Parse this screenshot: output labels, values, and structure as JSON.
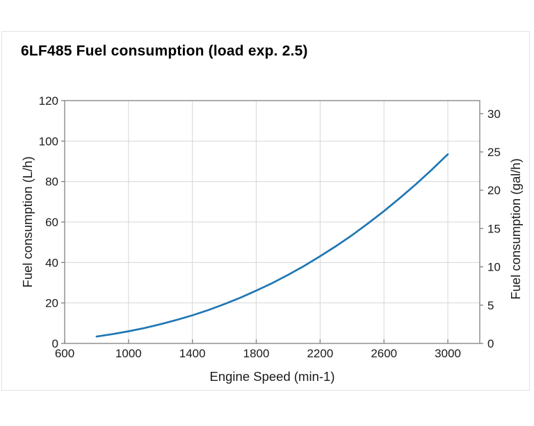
{
  "chart_data": {
    "type": "line",
    "title": "6LF485 Fuel consumption (load exp. 2.5)",
    "xlabel": "Engine Speed (min-1)",
    "ylabel_left": "Fuel consumption (L/h)",
    "ylabel_right": "Fuel consumption (gal/h)",
    "xlim": [
      600,
      3200
    ],
    "ylim_left": [
      0,
      120
    ],
    "ylim_right": [
      0,
      31.7
    ],
    "x_ticks": [
      600,
      1000,
      1400,
      1800,
      2200,
      2600,
      3000
    ],
    "y_ticks_left": [
      0,
      20,
      40,
      60,
      80,
      100,
      120
    ],
    "y_ticks_right": [
      0,
      5,
      10,
      15,
      20,
      25,
      30
    ],
    "liters_per_gallon": 3.78541,
    "grid": true,
    "legend": "none",
    "series": [
      {
        "name": "Fuel consumption",
        "color": "#1f77b4",
        "points": [
          [
            800,
            3.4
          ],
          [
            900,
            4.6
          ],
          [
            1000,
            6.0
          ],
          [
            1100,
            7.6
          ],
          [
            1200,
            9.5
          ],
          [
            1300,
            11.6
          ],
          [
            1400,
            13.9
          ],
          [
            1500,
            16.5
          ],
          [
            1600,
            19.4
          ],
          [
            1700,
            22.6
          ],
          [
            1800,
            26.1
          ],
          [
            1900,
            29.8
          ],
          [
            2000,
            33.9
          ],
          [
            2100,
            38.3
          ],
          [
            2200,
            43.1
          ],
          [
            2300,
            48.1
          ],
          [
            2400,
            53.5
          ],
          [
            2500,
            59.3
          ],
          [
            2600,
            65.4
          ],
          [
            2700,
            71.9
          ],
          [
            2800,
            78.7
          ],
          [
            2900,
            85.9
          ],
          [
            3000,
            93.5
          ]
        ]
      }
    ],
    "colors": {
      "frame": "#7f7f7f",
      "grid": "#d6d6d6",
      "tick": "#7f7f7f",
      "text": "#1a1a1a"
    }
  }
}
